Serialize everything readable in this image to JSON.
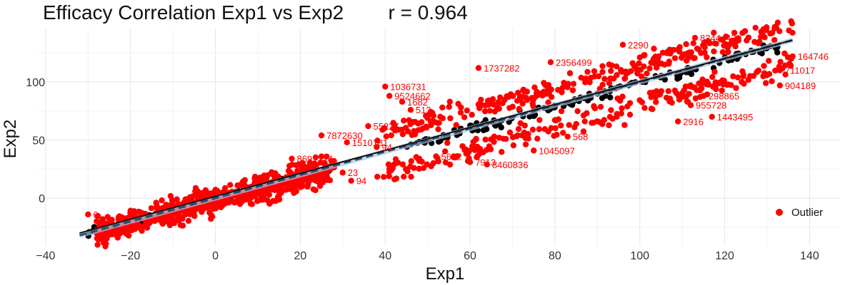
{
  "title": "Efficacy Correlation Exp1 vs Exp2",
  "stat": "r = 0.964",
  "chart_data": {
    "type": "scatter",
    "title": "Efficacy Correlation Exp1 vs Exp2",
    "subtitle": "r = 0.964",
    "xlabel": "Exp1",
    "ylabel": "Exp2",
    "xlim": [
      -42,
      147
    ],
    "ylim": [
      -41,
      146
    ],
    "xticks": [
      -40,
      -20,
      0,
      20,
      40,
      60,
      80,
      100,
      120,
      140
    ],
    "xtick_labels": [
      "−40",
      "−20",
      "0",
      "20",
      "40",
      "60",
      "80",
      "100",
      "120",
      "140"
    ],
    "yticks": [
      0,
      50,
      100
    ],
    "ytick_labels": [
      "0",
      "50",
      "100"
    ],
    "grid": true,
    "legend": {
      "position": "bottom-right",
      "entries": [
        {
          "label": "Outlier",
          "color": "#ff0000"
        }
      ]
    },
    "colors": {
      "outlier": "#ff0000",
      "normal": "#000000",
      "fit_line": "#111111",
      "identity_line": "#1f4e79",
      "band": "#b0c4de"
    },
    "fit_lines": [
      {
        "name": "regression",
        "x": [
          -32,
          136
        ],
        "y": [
          -30,
          136
        ]
      },
      {
        "name": "identity",
        "x": [
          -32,
          136
        ],
        "y": [
          -32,
          136
        ]
      }
    ],
    "series": [
      {
        "name": "Outlier",
        "labeled_points": [
          {
            "x": 40,
            "y": 96,
            "label": "1036731"
          },
          {
            "x": 62,
            "y": 112,
            "label": "1737282"
          },
          {
            "x": 79,
            "y": 117,
            "label": "2356499"
          },
          {
            "x": 41,
            "y": 88,
            "label": "9524662"
          },
          {
            "x": 44,
            "y": 83,
            "label": "1682"
          },
          {
            "x": 46,
            "y": 76,
            "label": "513"
          },
          {
            "x": 25,
            "y": 54,
            "label": "7872630"
          },
          {
            "x": 31,
            "y": 48,
            "label": "1510181"
          },
          {
            "x": 36,
            "y": 62,
            "label": "55227"
          },
          {
            "x": 52,
            "y": 36,
            "label": "5642"
          },
          {
            "x": 60,
            "y": 31,
            "label": "7913"
          },
          {
            "x": 64,
            "y": 29,
            "label": "8460836"
          },
          {
            "x": 75,
            "y": 41,
            "label": "1045097"
          },
          {
            "x": 96,
            "y": 132,
            "label": "2290"
          },
          {
            "x": 113,
            "y": 138,
            "label": "8344443"
          },
          {
            "x": 136,
            "y": 122,
            "label": "164746"
          },
          {
            "x": 133,
            "y": 110,
            "label": "711017"
          },
          {
            "x": 133,
            "y": 97,
            "label": "904189"
          },
          {
            "x": 115,
            "y": 88,
            "label": "298865"
          },
          {
            "x": 112,
            "y": 80,
            "label": "955728"
          },
          {
            "x": 117,
            "y": 70,
            "label": "1443495"
          },
          {
            "x": 109,
            "y": 66,
            "label": "2916"
          },
          {
            "x": 83,
            "y": 53,
            "label": "568"
          },
          {
            "x": 38,
            "y": 44,
            "label": "94"
          },
          {
            "x": 18,
            "y": 34,
            "label": "8691374"
          },
          {
            "x": 32,
            "y": 15,
            "label": "94"
          },
          {
            "x": 30,
            "y": 22,
            "label": "23"
          },
          {
            "x": -30,
            "y": -14,
            "label": "6"
          }
        ]
      },
      {
        "name": "Normal",
        "description_only": true
      }
    ]
  }
}
